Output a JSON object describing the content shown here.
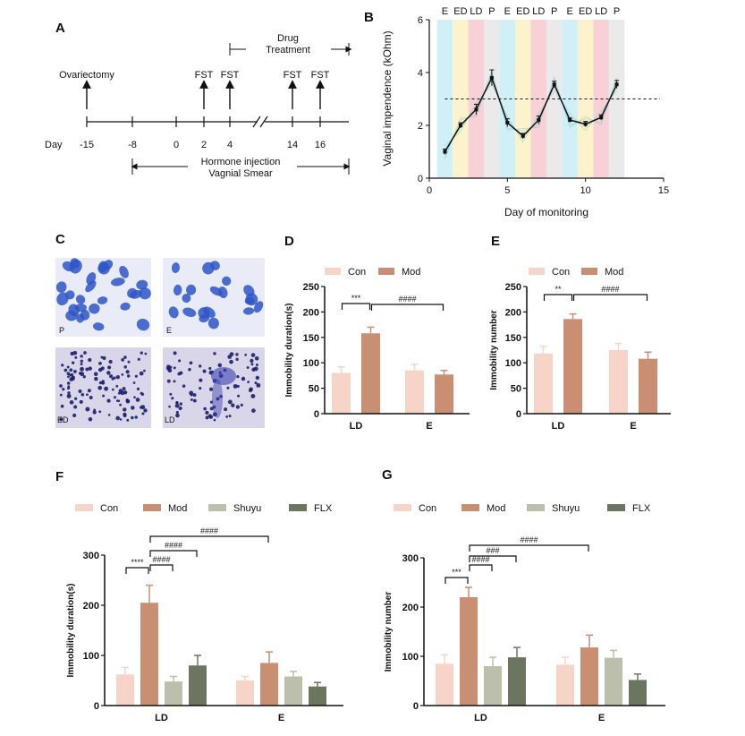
{
  "colors": {
    "Con": "#f6d5c8",
    "Mod": "#c98f73",
    "Shuyu": "#bcbfac",
    "FLX": "#6b7560",
    "stage_E": "#c9ecf6",
    "stage_ED": "#fbf1c3",
    "stage_LD": "#f6c9cf",
    "stage_P": "#e6e6e6",
    "stage_txt_E": "#31b3e6",
    "stage_txt_ED": "#e8a81c",
    "stage_txt_LD": "#e85b6b",
    "stage_txt_P": "#b5b5b5"
  },
  "panels": {
    "A": "A",
    "B": "B",
    "C": "C",
    "D": "D",
    "E": "E",
    "F": "F",
    "G": "G"
  },
  "timeline": {
    "day_label": "Day",
    "days": [
      "-15",
      "-8",
      "0",
      "2",
      "4",
      "14",
      "16"
    ],
    "ovariectomy": "Ovariectomy",
    "fst": "FST",
    "drug_line1": "Drug",
    "drug_line2": "Treatment",
    "hormone": "Hormone injection",
    "smear": "Vagnial Smear"
  },
  "micrographs": {
    "labels": [
      "P",
      "E",
      "ED",
      "LD"
    ]
  },
  "chart_data": [
    {
      "id": "B",
      "type": "line",
      "title": "",
      "xlabel": "Day of monitoring",
      "ylabel": "Vaginal impendence (kOhm)",
      "xlim": [
        0,
        15
      ],
      "ylim": [
        0,
        6
      ],
      "xticks": [
        0,
        5,
        10,
        15
      ],
      "yticks": [
        0,
        2,
        4,
        6
      ],
      "reference_line": 3,
      "stages": [
        "E",
        "ED",
        "LD",
        "P",
        "E",
        "ED",
        "LD",
        "P",
        "E",
        "ED",
        "LD",
        "P"
      ],
      "x": [
        1,
        2,
        3,
        4,
        5,
        6,
        7,
        8,
        9,
        10,
        11,
        12
      ],
      "y": [
        1.0,
        2.0,
        2.6,
        3.8,
        2.1,
        1.6,
        2.2,
        3.55,
        2.2,
        2.05,
        2.3,
        3.55
      ],
      "err": [
        0.1,
        0.1,
        0.2,
        0.3,
        0.15,
        0.1,
        0.15,
        0.12,
        0.08,
        0.1,
        0.1,
        0.15
      ]
    },
    {
      "id": "D",
      "type": "bar",
      "ylabel": "Immobility duration(s)",
      "ylim": [
        0,
        250
      ],
      "yticks": [
        0,
        50,
        100,
        150,
        200,
        250
      ],
      "categories": [
        "LD",
        "E"
      ],
      "series": [
        {
          "name": "Con",
          "values": [
            80,
            85
          ],
          "err": [
            12,
            12
          ]
        },
        {
          "name": "Mod",
          "values": [
            158,
            77
          ],
          "err": [
            12,
            8
          ]
        }
      ],
      "annotations": [
        {
          "label": "***",
          "from": [
            0,
            0
          ],
          "to": [
            0,
            1
          ]
        },
        {
          "label": "####",
          "from": [
            0,
            1
          ],
          "to": [
            1,
            1
          ]
        }
      ]
    },
    {
      "id": "E",
      "type": "bar",
      "ylabel": "Immobility number",
      "ylim": [
        0,
        250
      ],
      "yticks": [
        0,
        50,
        100,
        150,
        200,
        250
      ],
      "categories": [
        "LD",
        "E"
      ],
      "series": [
        {
          "name": "Con",
          "values": [
            118,
            125
          ],
          "err": [
            14,
            13
          ]
        },
        {
          "name": "Mod",
          "values": [
            186,
            108
          ],
          "err": [
            10,
            13
          ]
        }
      ],
      "annotations": [
        {
          "label": "**",
          "from": [
            0,
            0
          ],
          "to": [
            0,
            1
          ]
        },
        {
          "label": "####",
          "from": [
            0,
            1
          ],
          "to": [
            1,
            1
          ]
        }
      ]
    },
    {
      "id": "F",
      "type": "bar",
      "ylabel": "Immobility duration(s)",
      "ylim": [
        0,
        300
      ],
      "yticks": [
        0,
        100,
        200,
        300
      ],
      "categories": [
        "LD",
        "E"
      ],
      "series": [
        {
          "name": "Con",
          "values": [
            62,
            50
          ],
          "err": [
            14,
            8
          ]
        },
        {
          "name": "Mod",
          "values": [
            205,
            85
          ],
          "err": [
            35,
            22
          ]
        },
        {
          "name": "Shuyu",
          "values": [
            48,
            58
          ],
          "err": [
            10,
            10
          ]
        },
        {
          "name": "FLX",
          "values": [
            80,
            38
          ],
          "err": [
            20,
            8
          ]
        }
      ],
      "annotations": [
        {
          "label": "****",
          "from": [
            0,
            0
          ],
          "to": [
            0,
            1
          ]
        },
        {
          "label": "####",
          "from": [
            0,
            1
          ],
          "to": [
            0,
            2
          ]
        },
        {
          "label": "####",
          "from": [
            0,
            1
          ],
          "to": [
            0,
            3
          ]
        },
        {
          "label": "####",
          "from": [
            0,
            1
          ],
          "to": [
            1,
            1
          ]
        }
      ]
    },
    {
      "id": "G",
      "type": "bar",
      "ylabel": "Immobility number",
      "ylim": [
        0,
        300
      ],
      "yticks": [
        0,
        100,
        200,
        300
      ],
      "categories": [
        "LD",
        "E"
      ],
      "series": [
        {
          "name": "Con",
          "values": [
            85,
            83
          ],
          "err": [
            18,
            15
          ]
        },
        {
          "name": "Mod",
          "values": [
            220,
            118
          ],
          "err": [
            20,
            25
          ]
        },
        {
          "name": "Shuyu",
          "values": [
            80,
            97
          ],
          "err": [
            18,
            15
          ]
        },
        {
          "name": "FLX",
          "values": [
            98,
            52
          ],
          "err": [
            20,
            12
          ]
        }
      ],
      "annotations": [
        {
          "label": "***",
          "from": [
            0,
            0
          ],
          "to": [
            0,
            1
          ]
        },
        {
          "label": "####",
          "from": [
            0,
            1
          ],
          "to": [
            0,
            2
          ]
        },
        {
          "label": "###",
          "from": [
            0,
            1
          ],
          "to": [
            0,
            3
          ]
        },
        {
          "label": "####",
          "from": [
            0,
            1
          ],
          "to": [
            1,
            1
          ]
        }
      ]
    }
  ]
}
